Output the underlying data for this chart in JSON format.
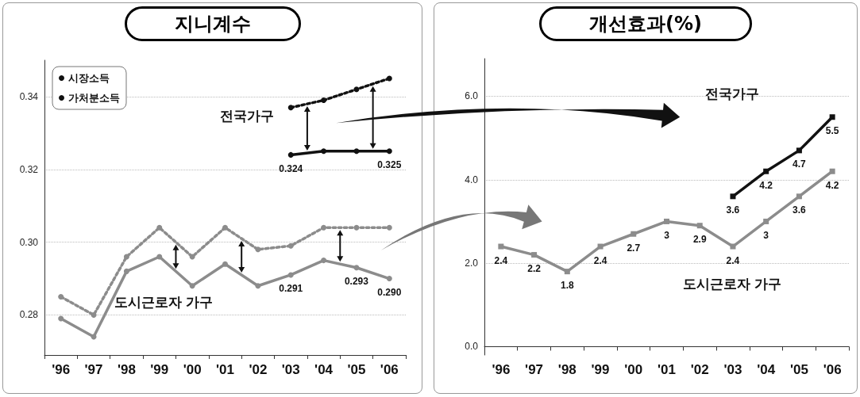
{
  "chart_data": [
    {
      "type": "line",
      "title": "지니계수",
      "categories": [
        "'96",
        "'97",
        "'98",
        "'99",
        "'00",
        "'01",
        "'02",
        "'03",
        "'04",
        "'05",
        "'06"
      ],
      "series": [
        {
          "name": "시장소득",
          "color": "#111111",
          "line_style": "dotted",
          "values": [
            null,
            null,
            null,
            null,
            null,
            null,
            null,
            0.337,
            0.339,
            0.342,
            0.345
          ]
        },
        {
          "name": "가처분소득",
          "color": "#111111",
          "line_style": "solid",
          "values": [
            null,
            null,
            null,
            null,
            null,
            null,
            null,
            0.324,
            0.325,
            0.325,
            0.325
          ],
          "value_labels": [
            null,
            null,
            null,
            null,
            null,
            null,
            null,
            "0.324",
            null,
            null,
            "0.325"
          ]
        },
        {
          "color": "#8c8c8c",
          "line_style": "dotted",
          "values": [
            0.285,
            0.28,
            0.296,
            0.304,
            0.296,
            0.304,
            0.298,
            0.299,
            0.304,
            0.304,
            0.304
          ]
        },
        {
          "color": "#8c8c8c",
          "line_style": "solid",
          "values": [
            0.279,
            0.274,
            0.292,
            0.296,
            0.288,
            0.294,
            0.288,
            0.291,
            0.295,
            0.293,
            0.29
          ],
          "value_labels": [
            null,
            null,
            null,
            null,
            null,
            null,
            null,
            "0.291",
            null,
            "0.293",
            "0.290"
          ]
        }
      ],
      "ylim": [
        0.269,
        0.35
      ],
      "yticks": [
        {
          "value": 0.28,
          "label": "0.28"
        },
        {
          "value": 0.3,
          "label": "0.30"
        },
        {
          "value": 0.32,
          "label": "0.32"
        },
        {
          "value": 0.34,
          "label": "0.34"
        }
      ],
      "grid": "y",
      "legend": "top left",
      "marker": "circle",
      "annotations": [
        "전국가구",
        "도시근로자 가구"
      ]
    },
    {
      "type": "line",
      "title": "개선효과(%)",
      "categories": [
        "'96",
        "'97",
        "'98",
        "'99",
        "'00",
        "'01",
        "'02",
        "'03",
        "'04",
        "'05",
        "'06"
      ],
      "series": [
        {
          "color": "#111111",
          "line_style": "solid",
          "values": [
            null,
            null,
            null,
            null,
            null,
            null,
            null,
            3.6,
            4.2,
            4.7,
            5.5
          ]
        },
        {
          "color": "#8c8c8c",
          "line_style": "solid",
          "values": [
            2.4,
            2.2,
            1.8,
            2.4,
            2.7,
            3.0,
            2.9,
            2.4,
            3.0,
            3.6,
            4.2
          ]
        }
      ],
      "ylim": [
        -0.2,
        6.9
      ],
      "yticks": [
        {
          "value": 0,
          "label": "0.0"
        },
        {
          "value": 2,
          "label": "2.0"
        },
        {
          "value": 4,
          "label": "4.0"
        },
        {
          "value": 6,
          "label": "6.0"
        }
      ],
      "grid": "y",
      "marker": "square",
      "data_labels": true,
      "annotations": [
        "전국가구",
        "도시근로자 가구"
      ]
    }
  ]
}
